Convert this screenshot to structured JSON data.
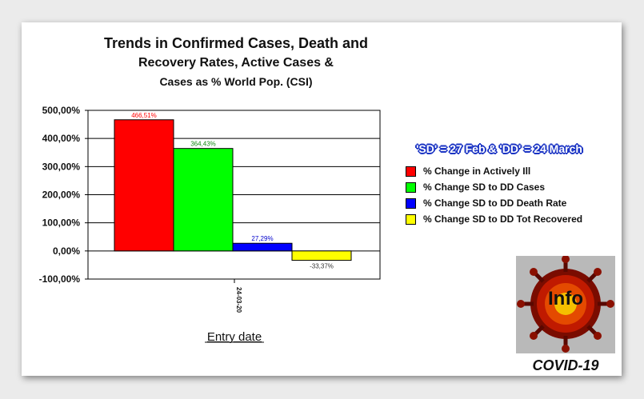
{
  "chart_data": {
    "type": "bar",
    "title_lines": [
      "Trends in Confirmed Cases, Death and",
      "Recovery Rates, Active Cases &",
      "Cases as % World Pop. (CSI)"
    ],
    "xlabel": "Entry date",
    "ylabel": "",
    "categories": [
      "24-03-20"
    ],
    "ylim": [
      -100,
      500
    ],
    "yticks": [
      500,
      400,
      300,
      200,
      100,
      0,
      -100
    ],
    "ytick_labels": [
      "500,00%",
      "400,00%",
      "300,00%",
      "200,00%",
      "100,00%",
      "0,00%",
      "-100,00%"
    ],
    "grid": true,
    "legend_position": "right",
    "legend_title": "'SD' = 27 Feb & 'DD' = 24 March",
    "series": [
      {
        "name": "% Change in Actively Ill",
        "values": [
          466.51
        ],
        "label": "466,51%",
        "color": "#ff0000",
        "label_color": "#ff0000"
      },
      {
        "name": "% Change SD to DD Cases",
        "values": [
          364.43
        ],
        "label": "364,43%",
        "color": "#00ff00",
        "label_color": "#138a13"
      },
      {
        "name": "% Change SD to DD Death Rate",
        "values": [
          27.29
        ],
        "label": "27,29%",
        "color": "#0000ff",
        "label_color": "#0000cc"
      },
      {
        "name": "% Change SD to DD Tot Recovered",
        "values": [
          -33.37
        ],
        "label": "-33,37%",
        "color": "#ffff00",
        "label_color": "#333333"
      }
    ]
  },
  "badge": {
    "image_text": "Info",
    "caption": "COVID-19"
  }
}
